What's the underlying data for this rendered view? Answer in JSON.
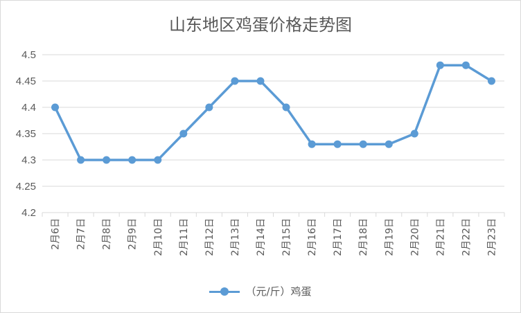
{
  "chart_data": {
    "type": "line",
    "title": "山东地区鸡蛋价格走势图",
    "categories": [
      "2月6日",
      "2月7日",
      "2月8日",
      "2月9日",
      "2月10日",
      "2月11日",
      "2月12日",
      "2月13日",
      "2月14日",
      "2月15日",
      "2月16日",
      "2月17日",
      "2月18日",
      "2月19日",
      "2月20日",
      "2月21日",
      "2月22日",
      "2月23日"
    ],
    "series": [
      {
        "name": "（元/斤）鸡蛋",
        "values": [
          4.4,
          4.3,
          4.3,
          4.3,
          4.3,
          4.35,
          4.4,
          4.45,
          4.45,
          4.4,
          4.33,
          4.33,
          4.33,
          4.33,
          4.35,
          4.48,
          4.48,
          4.45
        ],
        "color": "#5b9bd5"
      }
    ],
    "ylim": [
      4.2,
      4.5
    ],
    "yticks": [
      "4.2",
      "4.25",
      "4.3",
      "4.35",
      "4.4",
      "4.45",
      "4.5"
    ],
    "grid": true,
    "legend": "bottom"
  }
}
